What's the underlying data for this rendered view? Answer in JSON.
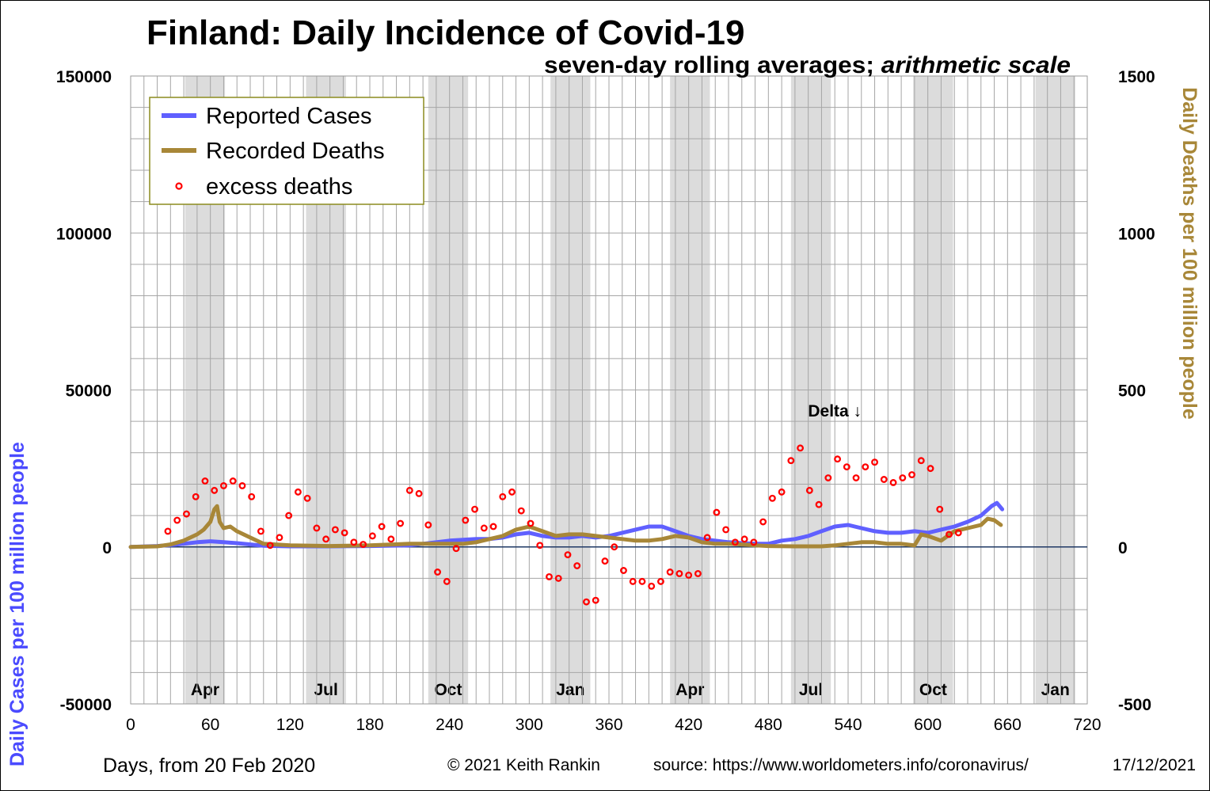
{
  "chart_data": {
    "type": "line",
    "title": "Finland: Daily Incidence of Covid-19",
    "subtitle_part1": "seven-day rolling averages; ",
    "subtitle_part2": "arithmetic scale",
    "xlabel": "Days, from 20 Feb 2020",
    "ylabel_left": "Daily Cases per 100 million people",
    "ylabel_right": "Daily Deaths per 100 million people",
    "xlim": [
      0,
      720
    ],
    "x_ticks": [
      0,
      60,
      120,
      180,
      240,
      300,
      360,
      420,
      480,
      540,
      600,
      660,
      720
    ],
    "ylim_left": [
      -50000,
      150000
    ],
    "y_ticks_left": [
      -50000,
      0,
      50000,
      100000,
      150000
    ],
    "ylim_right": [
      -500,
      1500
    ],
    "y_ticks_right": [
      -500,
      0,
      500,
      1000,
      1500
    ],
    "grid": true,
    "legend_position": "top-left",
    "month_bands": [
      {
        "label": "Apr",
        "start": 41,
        "end": 71
      },
      {
        "label": "Jul",
        "start": 132,
        "end": 162
      },
      {
        "label": "Oct",
        "start": 224,
        "end": 254
      },
      {
        "label": "Jan",
        "start": 316,
        "end": 346
      },
      {
        "label": "Apr",
        "start": 406,
        "end": 436
      },
      {
        "label": "Jul",
        "start": 497,
        "end": 527
      },
      {
        "label": "Oct",
        "start": 589,
        "end": 619
      },
      {
        "label": "Jan",
        "start": 681,
        "end": 711
      }
    ],
    "annotation": {
      "text": "Delta ↓",
      "x": 530,
      "y": 41500
    },
    "series": [
      {
        "name": "Reported Cases",
        "axis": "left",
        "color": "#6060ff",
        "x": [
          0,
          20,
          30,
          40,
          50,
          60,
          70,
          80,
          90,
          100,
          120,
          150,
          180,
          210,
          240,
          260,
          270,
          280,
          290,
          300,
          310,
          320,
          330,
          340,
          350,
          360,
          370,
          380,
          390,
          400,
          410,
          420,
          430,
          440,
          450,
          460,
          470,
          480,
          490,
          500,
          510,
          520,
          530,
          540,
          550,
          560,
          570,
          580,
          590,
          600,
          610,
          620,
          630,
          640,
          648,
          652,
          656
        ],
        "y": [
          0,
          300,
          600,
          1000,
          1500,
          1800,
          1500,
          1200,
          800,
          400,
          200,
          200,
          300,
          500,
          2000,
          2500,
          2500,
          3000,
          4000,
          4500,
          3500,
          3000,
          3000,
          3500,
          3000,
          3500,
          4500,
          5500,
          6500,
          6500,
          5000,
          3500,
          2500,
          2000,
          1500,
          1200,
          1000,
          1000,
          2000,
          2500,
          3500,
          5000,
          6500,
          7000,
          6000,
          5000,
          4500,
          4500,
          5000,
          4500,
          5500,
          6500,
          8000,
          10000,
          13000,
          14000,
          12000
        ]
      },
      {
        "name": "Recorded Deaths",
        "axis": "right",
        "color": "#a88738",
        "x": [
          0,
          20,
          30,
          40,
          50,
          55,
          60,
          63,
          65,
          67,
          70,
          75,
          80,
          90,
          100,
          120,
          150,
          180,
          210,
          240,
          250,
          260,
          270,
          280,
          290,
          300,
          310,
          320,
          330,
          340,
          350,
          360,
          370,
          380,
          390,
          400,
          410,
          420,
          430,
          440,
          450,
          460,
          470,
          480,
          500,
          520,
          530,
          540,
          550,
          560,
          570,
          580,
          590,
          595,
          600,
          610,
          620,
          630,
          640,
          645,
          650,
          655
        ],
        "y": [
          0,
          2,
          8,
          20,
          40,
          55,
          80,
          120,
          130,
          80,
          60,
          65,
          50,
          30,
          10,
          5,
          3,
          5,
          10,
          10,
          10,
          15,
          25,
          35,
          55,
          65,
          50,
          35,
          40,
          40,
          35,
          30,
          25,
          20,
          20,
          25,
          35,
          30,
          15,
          10,
          10,
          8,
          5,
          3,
          2,
          2,
          5,
          10,
          15,
          15,
          10,
          10,
          5,
          40,
          35,
          20,
          50,
          60,
          70,
          90,
          85,
          70
        ]
      },
      {
        "name": "excess deaths",
        "axis": "right",
        "color": "#ff0000",
        "x": [
          28,
          35,
          42,
          49,
          56,
          63,
          70,
          77,
          84,
          91,
          98,
          105,
          112,
          119,
          126,
          133,
          140,
          147,
          154,
          161,
          168,
          175,
          182,
          189,
          196,
          203,
          210,
          217,
          224,
          231,
          238,
          245,
          252,
          259,
          266,
          273,
          280,
          287,
          294,
          301,
          308,
          315,
          322,
          329,
          336,
          343,
          350,
          357,
          364,
          371,
          378,
          385,
          392,
          399,
          406,
          413,
          420,
          427,
          434,
          441,
          448,
          455,
          462,
          469,
          476,
          483,
          490,
          497,
          504,
          511,
          518,
          525,
          532,
          539,
          546,
          553,
          560,
          567,
          574,
          581,
          588,
          595,
          602,
          609,
          616,
          623
        ],
        "y": [
          50,
          85,
          105,
          160,
          210,
          180,
          195,
          210,
          195,
          160,
          50,
          5,
          30,
          100,
          175,
          155,
          60,
          25,
          55,
          45,
          15,
          8,
          35,
          65,
          25,
          75,
          180,
          170,
          70,
          -80,
          -110,
          -5,
          85,
          120,
          60,
          65,
          160,
          175,
          115,
          75,
          5,
          -95,
          -100,
          -25,
          -60,
          -175,
          -170,
          -45,
          0,
          -75,
          -110,
          -110,
          -125,
          -110,
          -80,
          -85,
          -90,
          -85,
          30,
          110,
          55,
          15,
          25,
          15,
          80,
          155,
          175,
          275,
          315,
          180,
          135,
          220,
          280,
          255,
          220,
          255,
          270,
          215,
          205,
          220,
          230,
          275,
          250,
          120,
          40,
          45
        ]
      }
    ]
  },
  "footer": {
    "copyright": "© 2021  Keith Rankin",
    "source": "source: https://www.worldometers.info/coronavirus/",
    "date": "17/12/2021"
  }
}
